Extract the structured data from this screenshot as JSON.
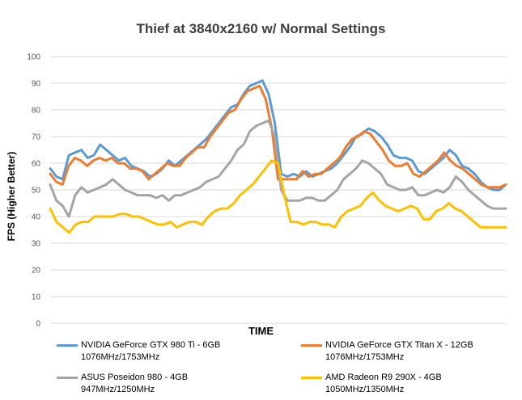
{
  "chart_data": {
    "type": "line",
    "title": "Thief at 3840x2160 w/ Normal Settings",
    "xlabel": "TIME",
    "ylabel": "FPS (Higher Better)",
    "ylim": [
      0,
      100
    ],
    "yticks": [
      0,
      10,
      20,
      30,
      40,
      50,
      60,
      70,
      80,
      90,
      100
    ],
    "grid": true,
    "legend_position": "bottom",
    "series": [
      {
        "name": "NVIDIA GeForce GTX 980 Ti - 6GB",
        "subtitle": "1076MHz/1753MHz",
        "color": "#5b9bd5",
        "values": [
          58,
          55,
          54,
          63,
          64,
          65,
          62,
          63,
          67,
          65,
          63,
          61,
          62,
          59,
          58,
          57,
          55,
          56,
          58,
          61,
          59,
          61,
          63,
          65,
          67,
          69,
          72,
          75,
          78,
          81,
          82,
          86,
          89,
          90,
          91,
          86,
          75,
          56,
          55,
          56,
          55,
          57,
          55,
          56,
          57,
          58,
          60,
          63,
          66,
          70,
          71,
          73,
          72,
          70,
          67,
          63,
          62,
          62,
          61,
          57,
          56,
          58,
          60,
          62,
          65,
          63,
          59,
          58,
          56,
          53,
          51,
          50,
          50,
          52
        ]
      },
      {
        "name": "NVIDIA GeForce GTX Titan X - 12GB",
        "subtitle": "1076MHz/1753MHz",
        "color": "#ed7d31",
        "values": [
          56,
          53,
          52,
          59,
          62,
          61,
          59,
          61,
          62,
          61,
          62,
          60,
          60,
          58,
          58,
          57,
          54,
          56,
          58,
          60,
          59,
          59,
          62,
          64,
          66,
          66,
          70,
          73,
          76,
          79,
          80,
          84,
          87,
          88,
          89,
          84,
          73,
          54,
          54,
          54,
          54,
          57,
          55,
          56,
          56,
          58,
          60,
          62,
          66,
          69,
          70,
          72,
          71,
          68,
          65,
          61,
          59,
          59,
          60,
          56,
          55,
          57,
          59,
          61,
          64,
          61,
          59,
          58,
          56,
          54,
          52,
          51,
          51,
          51,
          52
        ]
      },
      {
        "name": "ASUS Poseidon 980 - 4GB",
        "subtitle": "947MHz/1250MHz",
        "color": "#a5a5a5",
        "values": [
          52,
          46,
          44,
          40,
          48,
          51,
          49,
          50,
          51,
          52,
          54,
          52,
          50,
          49,
          48,
          48,
          48,
          47,
          48,
          46,
          48,
          48,
          49,
          50,
          51,
          53,
          54,
          55,
          58,
          61,
          65,
          67,
          72,
          74,
          75,
          76,
          70,
          50,
          46,
          46,
          46,
          47,
          47,
          46,
          46,
          48,
          50,
          54,
          56,
          58,
          61,
          60,
          58,
          56,
          52,
          51,
          50,
          50,
          51,
          48,
          48,
          49,
          50,
          49,
          51,
          55,
          53,
          50,
          48,
          46,
          44,
          43,
          43,
          43
        ]
      },
      {
        "name": "AMD Radeon R9 290X - 4GB",
        "subtitle": "1050MHz/1350MHz",
        "color": "#ffc000",
        "values": [
          43,
          38,
          36,
          34,
          37,
          38,
          38,
          40,
          40,
          40,
          40,
          41,
          41,
          40,
          40,
          39,
          38,
          37,
          37,
          38,
          36,
          37,
          38,
          38,
          37,
          40,
          42,
          43,
          43,
          45,
          48,
          50,
          52,
          55,
          58,
          61,
          60,
          48,
          38,
          38,
          37,
          38,
          38,
          37,
          37,
          36,
          40,
          42,
          43,
          44,
          47,
          49,
          46,
          44,
          43,
          42,
          43,
          44,
          43,
          39,
          39,
          42,
          43,
          45,
          43,
          42,
          40,
          38,
          36,
          36,
          36,
          36,
          36
        ]
      }
    ]
  }
}
